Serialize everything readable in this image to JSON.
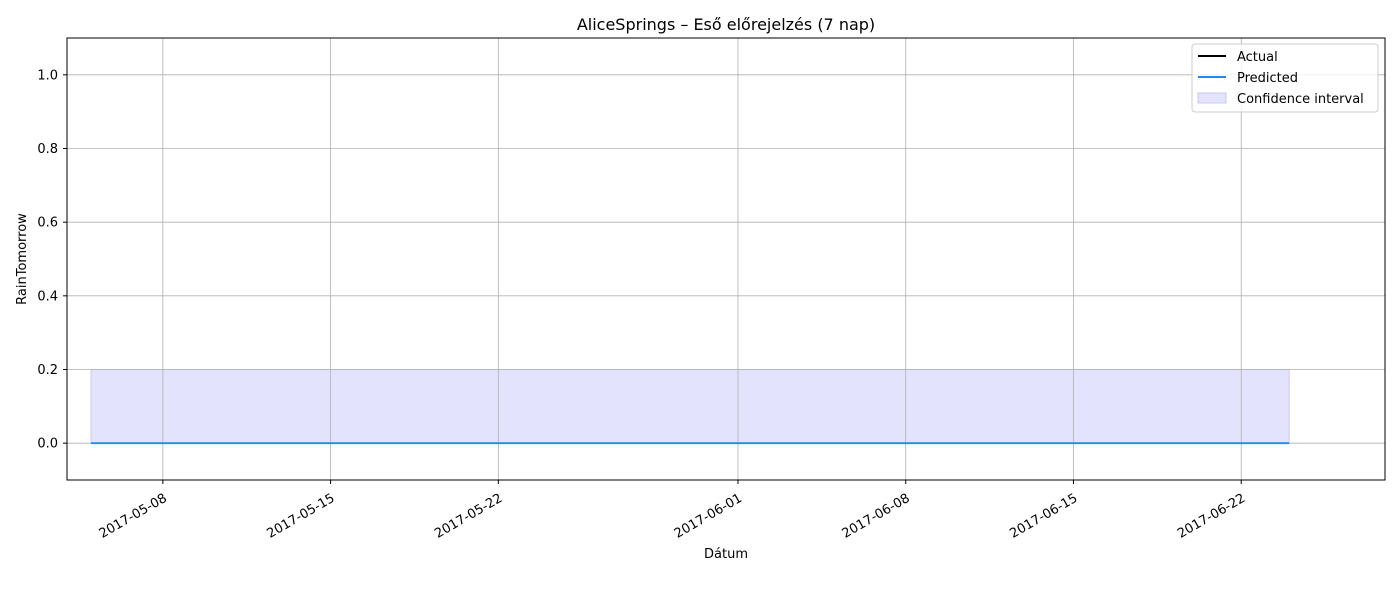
{
  "chart_data": {
    "type": "line",
    "title": "AliceSprings – Eső előrejelzés (7 nap)",
    "xlabel": "Dátum",
    "ylabel": "RainTomorrow",
    "x_type": "date",
    "xlim": [
      "2017-05-04",
      "2017-06-28"
    ],
    "ylim": [
      -0.1,
      1.1
    ],
    "x_ticks": [
      "2017-05-08",
      "2017-05-15",
      "2017-05-22",
      "2017-06-01",
      "2017-06-08",
      "2017-06-15",
      "2017-06-22"
    ],
    "y_ticks": [
      0.0,
      0.2,
      0.4,
      0.6,
      0.8,
      1.0
    ],
    "y_tick_labels": [
      "0.0",
      "0.2",
      "0.4",
      "0.6",
      "0.8",
      "1.0"
    ],
    "grid": true,
    "legend_position": "top-right",
    "legend": [
      "Actual",
      "Predicted",
      "Confidence interval"
    ],
    "series": [
      {
        "name": "Actual",
        "color": "#000000",
        "x": [],
        "values": []
      },
      {
        "name": "Predicted",
        "color": "#1e88ff",
        "x": [
          "2017-05-05",
          "2017-06-24"
        ],
        "values": [
          0.0,
          0.0
        ]
      }
    ],
    "confidence_interval": {
      "name": "Confidence interval",
      "color": "#e3e3fd",
      "edge_color": "#c9c9f2",
      "x": [
        "2017-05-05",
        "2017-06-24"
      ],
      "lower": [
        0.0,
        0.0
      ],
      "upper": [
        0.2,
        0.2
      ]
    }
  }
}
